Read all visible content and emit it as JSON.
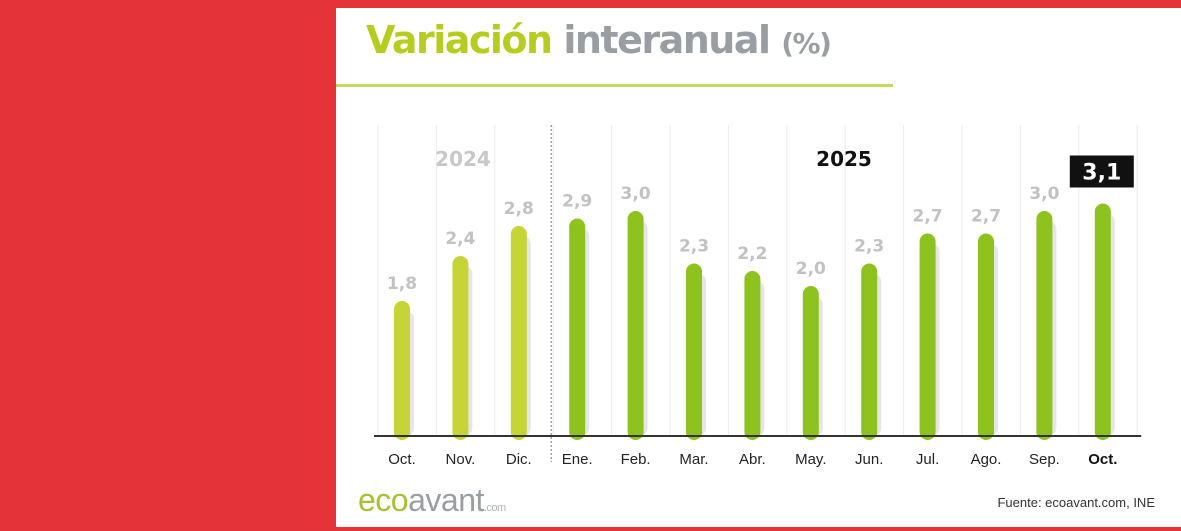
{
  "title": {
    "part1": "Variación",
    "part2": "interanual",
    "part3": "(%)"
  },
  "colors": {
    "background": "#e4343a",
    "bar_2024": "#c5d535",
    "bar_2025": "#8dc21f",
    "label": "#c2c2c2",
    "highlight": "#111111"
  },
  "chart_data": {
    "type": "bar",
    "title": "Variación interanual (%)",
    "categories": [
      "Oct.",
      "Nov.",
      "Dic.",
      "Ene.",
      "Feb.",
      "Mar.",
      "Abr.",
      "May.",
      "Jun.",
      "Jul.",
      "Ago.",
      "Sep.",
      "Oct."
    ],
    "values": [
      1.8,
      2.4,
      2.8,
      2.9,
      3.0,
      2.3,
      2.2,
      2.0,
      2.3,
      2.7,
      2.7,
      3.0,
      3.1
    ],
    "data_labels": [
      "1,8",
      "2,4",
      "2,8",
      "2,9",
      "3,0",
      "2,3",
      "2,2",
      "2,0",
      "2,3",
      "2,7",
      "2,7",
      "3,0",
      "3,1"
    ],
    "years": [
      {
        "label": "2024",
        "start": 0
      },
      {
        "label": "2025",
        "start": 3
      }
    ],
    "ylim": [
      0,
      4
    ],
    "xlabel": "",
    "ylabel": "",
    "grid": false
  },
  "footer": {
    "logo_eco": "eco",
    "logo_avant": "avant",
    "logo_com": ".com",
    "source": "Fuente: ecoavant.com, INE"
  }
}
